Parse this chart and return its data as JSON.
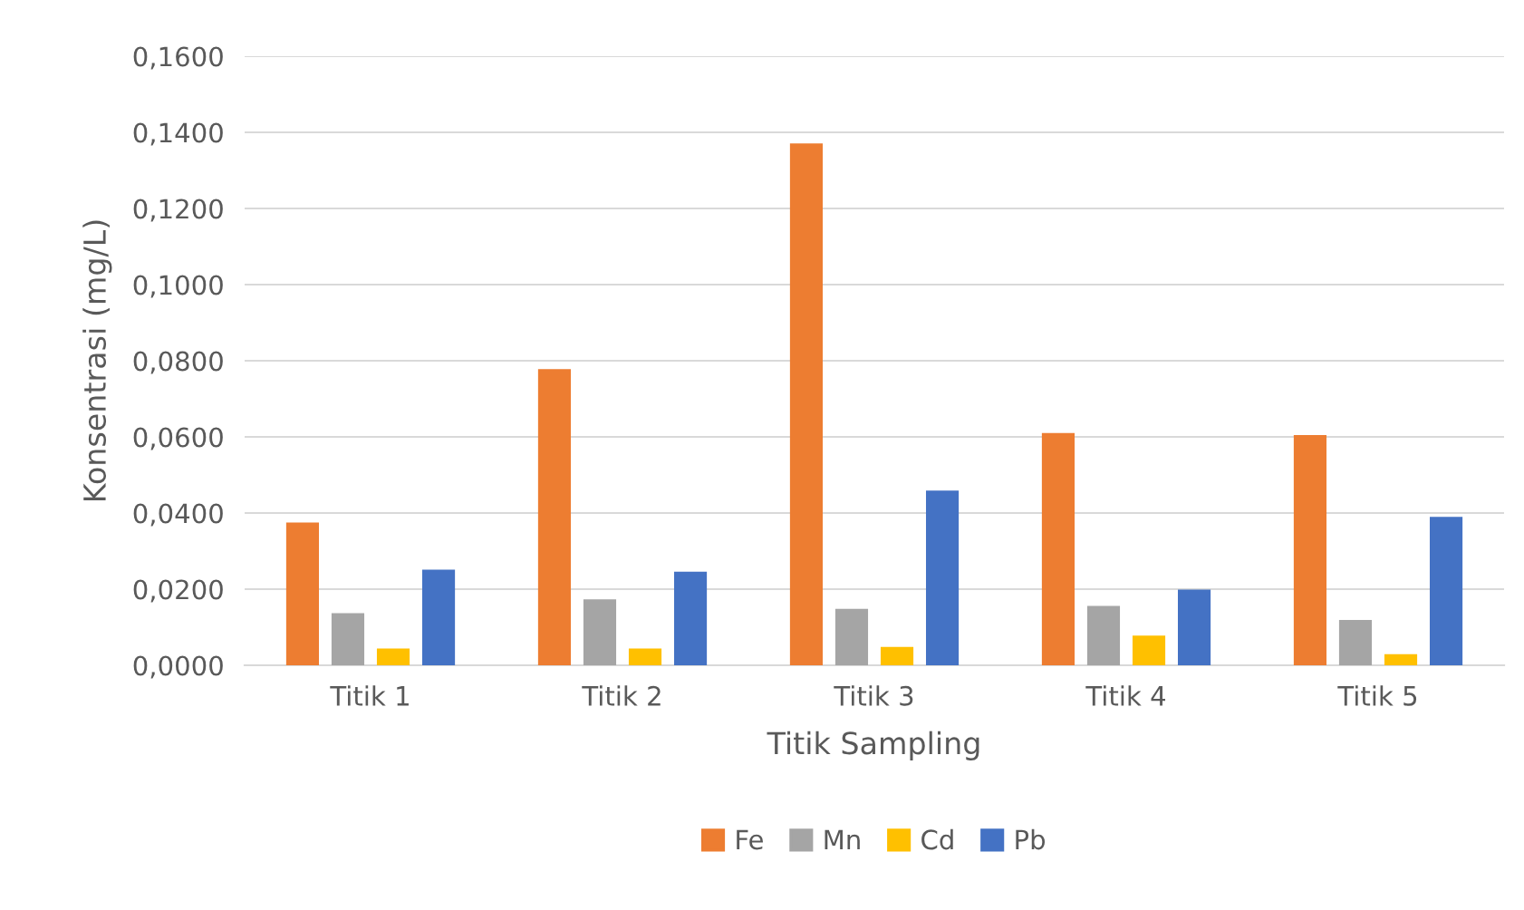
{
  "chart_data": {
    "type": "bar",
    "xlabel": "Titik Sampling",
    "ylabel": "Konsentrasi (mg/L)",
    "categories": [
      "Titik 1",
      "Titik 2",
      "Titik 3",
      "Titik 4",
      "Titik 5"
    ],
    "series": [
      {
        "name": "Fe",
        "color": "#ed7d31",
        "values": [
          0.0375,
          0.0778,
          0.1371,
          0.061,
          0.0605
        ]
      },
      {
        "name": "Mn",
        "color": "#a5a5a5",
        "values": [
          0.0137,
          0.0173,
          0.0148,
          0.0156,
          0.0119
        ]
      },
      {
        "name": "Cd",
        "color": "#ffc000",
        "values": [
          0.0044,
          0.0044,
          0.0048,
          0.0078,
          0.0029
        ]
      },
      {
        "name": "Pb",
        "color": "#4472c4",
        "values": [
          0.0251,
          0.0246,
          0.0459,
          0.0199,
          0.039
        ]
      }
    ],
    "ylim": [
      0,
      0.16
    ],
    "yticks": [
      {
        "value": 0,
        "label": "0,0000"
      },
      {
        "value": 0.02,
        "label": "0,0200"
      },
      {
        "value": 0.04,
        "label": "0,0400"
      },
      {
        "value": 0.06,
        "label": "0,0600"
      },
      {
        "value": 0.08,
        "label": "0,0800"
      },
      {
        "value": 0.1,
        "label": "0,1000"
      },
      {
        "value": 0.12,
        "label": "0,1200"
      },
      {
        "value": 0.14,
        "label": "0,1400"
      },
      {
        "value": 0.16,
        "label": "0,1600"
      }
    ],
    "grid": "y",
    "legend": "bottom"
  }
}
